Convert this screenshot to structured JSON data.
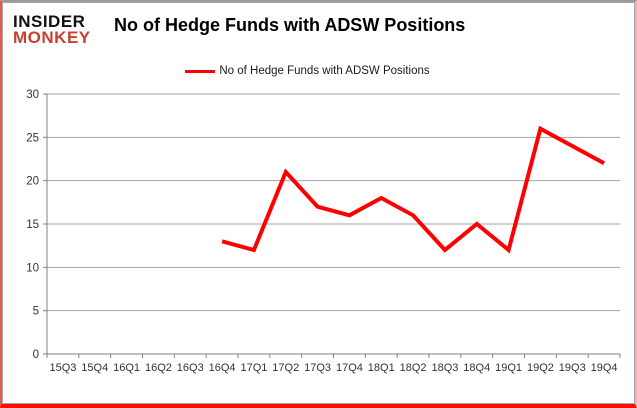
{
  "logo": {
    "line1": "INSIDER",
    "line2": "MONKEY",
    "accent_color": "#c8402f"
  },
  "header": {
    "title": "No of Hedge Funds with ADSW Positions"
  },
  "legend": {
    "label": "No of Hedge Funds with ADSW Positions",
    "line_color": "#ff0000",
    "position": "top-center"
  },
  "chart_data": {
    "type": "line",
    "title": "No of Hedge Funds with ADSW Positions",
    "categories": [
      "15Q3",
      "15Q4",
      "16Q1",
      "16Q2",
      "16Q3",
      "16Q4",
      "17Q1",
      "17Q2",
      "17Q3",
      "17Q4",
      "18Q1",
      "18Q2",
      "18Q3",
      "18Q4",
      "19Q1",
      "19Q2",
      "19Q3",
      "19Q4"
    ],
    "series": [
      {
        "name": "No of Hedge Funds with ADSW Positions",
        "color": "#ff0000",
        "values": [
          null,
          null,
          null,
          null,
          null,
          13,
          12,
          21,
          17,
          16,
          18,
          16,
          12,
          15,
          12,
          26,
          24,
          22
        ]
      }
    ],
    "xlabel": "",
    "ylabel": "",
    "ylim": [
      0,
      30
    ],
    "yticks": [
      0,
      5,
      10,
      15,
      20,
      25,
      30
    ],
    "grid": true,
    "gridline_color": "#a6a6a6",
    "axis_color": "#808080",
    "tick_label_color": "#333333",
    "legend_position": "top-center"
  }
}
